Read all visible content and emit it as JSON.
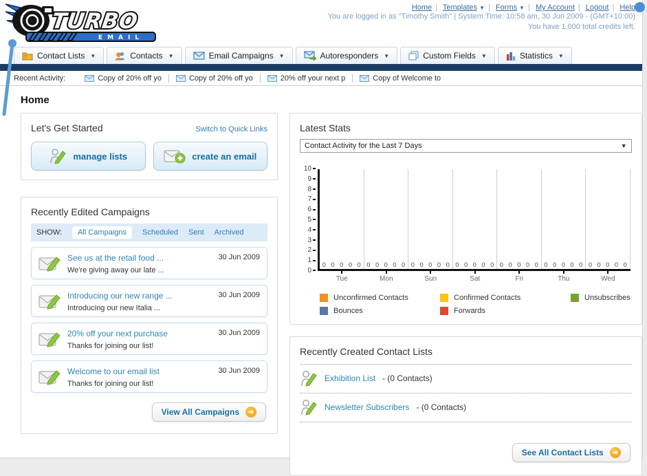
{
  "header": {
    "logo": {
      "line1": "TURBO",
      "line2": "EMAIL"
    },
    "nav_links": [
      "Home",
      "Templates",
      "Forms",
      "My Account",
      "Logout",
      "Help"
    ],
    "status_line1": "You are logged in as \"Timothy Smith\" | System Time: 10:58 am, 30 Jun 2009 - (GMT+10:00)",
    "status_line2": "You have 1,000 total credits left."
  },
  "nav_tabs": [
    {
      "label": "Contact Lists",
      "icon": "folder-contact-icon"
    },
    {
      "label": "Contacts",
      "icon": "people-icon"
    },
    {
      "label": "Email Campaigns",
      "icon": "envelope-icon"
    },
    {
      "label": "Autoresponders",
      "icon": "envelope-arrow-icon"
    },
    {
      "label": "Custom Fields",
      "icon": "pages-icon"
    },
    {
      "label": "Statistics",
      "icon": "bar-chart-icon"
    }
  ],
  "recent_activity": {
    "label": "Recent Activity:",
    "items": [
      "Copy of 20% off yo",
      "Copy of 20% off yo",
      "20% off your next p",
      "Copy of Welcome to"
    ]
  },
  "page_title": "Home",
  "get_started": {
    "title": "Let's Get Started",
    "switch_link": "Switch to Quick Links",
    "buttons": [
      {
        "label": "manage lists",
        "icon": "person-pencil-icon"
      },
      {
        "label": "create an email",
        "icon": "envelope-plus-icon"
      }
    ]
  },
  "campaigns": {
    "title": "Recently Edited Campaigns",
    "show_label": "SHOW:",
    "filters": [
      {
        "label": "All Campaigns",
        "active": true
      },
      {
        "label": "Scheduled",
        "active": false
      },
      {
        "label": "Sent",
        "active": false
      },
      {
        "label": "Archived",
        "active": false
      }
    ],
    "items": [
      {
        "title": "See us at the retail food ...",
        "subtitle": "We're giving away our late ...",
        "date": "30 Jun 2009"
      },
      {
        "title": "Introducing our new range ...",
        "subtitle": "Introducing our new Italia ...",
        "date": "30 Jun 2009"
      },
      {
        "title": "20% off your next purchase",
        "subtitle": "Thanks for joining our list!",
        "date": "30 Jun 2009"
      },
      {
        "title": "Welcome to our email list",
        "subtitle": "Thanks for joining our list!",
        "date": "30 Jun 2009"
      }
    ],
    "view_all_label": "View All Campaigns"
  },
  "stats": {
    "title": "Latest Stats",
    "dropdown_value": "Contact Activity for the Last 7 Days",
    "chart_data": {
      "type": "bar",
      "title": "Contact Activity for the Last 7 Days",
      "categories": [
        "Tue",
        "Mon",
        "Sun",
        "Sat",
        "Fri",
        "Thu",
        "Wed"
      ],
      "series": [
        {
          "name": "Unconfirmed Contacts",
          "color": "#F68D1E",
          "values": [
            0,
            0,
            0,
            0,
            0,
            0,
            0
          ]
        },
        {
          "name": "Confirmed Contacts",
          "color": "#FDC412",
          "values": [
            0,
            0,
            0,
            0,
            0,
            0,
            0
          ]
        },
        {
          "name": "Unsubscribes",
          "color": "#77A32D",
          "values": [
            0,
            0,
            0,
            0,
            0,
            0,
            0
          ]
        },
        {
          "name": "Bounces",
          "color": "#5877A5",
          "values": [
            0,
            0,
            0,
            0,
            0,
            0,
            0
          ]
        },
        {
          "name": "Forwards",
          "color": "#E0482D",
          "values": [
            0,
            0,
            0,
            0,
            0,
            0,
            0
          ]
        }
      ],
      "ylim": [
        0,
        10
      ],
      "ytick_step": 1,
      "grid": "vertical",
      "legend_position": "bottom",
      "value_labels_shown": true
    }
  },
  "contact_lists": {
    "title": "Recently Created Contact Lists",
    "items": [
      {
        "name": "Exhibition List",
        "suffix": " - (0 Contacts)"
      },
      {
        "name": "Newsletter Subscribers",
        "suffix": " - (0 Contacts)"
      }
    ],
    "see_all_label": "See All Contact Lists"
  },
  "colors": {
    "navy_band": "#1c3c60",
    "link_blue": "#2e7cb5",
    "header_link": "#3a6d9e",
    "status_text": "#7fa1c3",
    "button_text": "#1570a6",
    "filter_bar_bg": "#dcebf7",
    "orange_arrow": "#f5a623",
    "logo_blue": "#2a6fc9"
  }
}
